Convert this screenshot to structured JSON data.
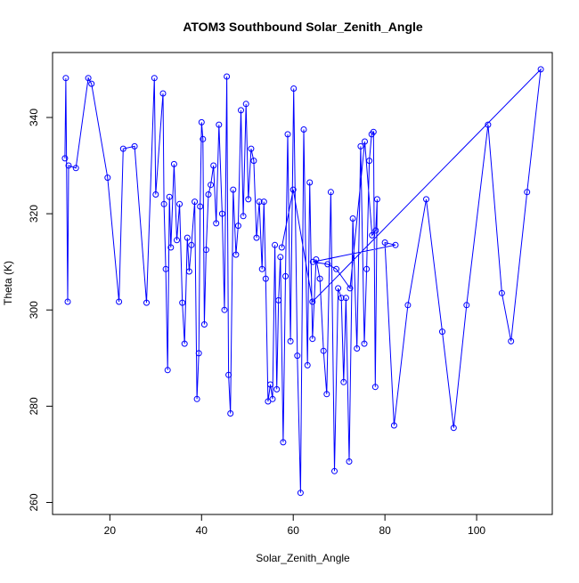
{
  "chart_data": {
    "type": "line",
    "title": "ATOM3 Southbound Solar_Zenith_Angle",
    "xlabel": "Solar_Zenith_Angle",
    "ylabel": "Theta (K)",
    "xlim": [
      7.5,
      116.5
    ],
    "ylim": [
      257.5,
      353.5
    ],
    "x_ticks": [
      20,
      40,
      60,
      80,
      100
    ],
    "y_ticks": [
      260,
      280,
      300,
      320,
      340
    ],
    "grid": false,
    "legend": "none",
    "series_color": "#0000ff",
    "marker": "open-circle",
    "series": [
      {
        "x": [
          10.2,
          10.4,
          10.8,
          11.0,
          12.6,
          15.3,
          16.0,
          19.5,
          22.0,
          22.9,
          25.4,
          28.0,
          29.7,
          30.0,
          31.6,
          31.8,
          32.2,
          32.6,
          33.0,
          33.3,
          34.0,
          34.6,
          35.2,
          35.8,
          36.3,
          36.9,
          37.3,
          37.8,
          38.5,
          39.0,
          39.4,
          39.7,
          40.0,
          40.3,
          40.6,
          41.0,
          41.5,
          42.0,
          42.6,
          43.2,
          43.8,
          44.5,
          45.0,
          45.5,
          45.9,
          46.3,
          46.9,
          47.5,
          48.0,
          48.6,
          49.1,
          49.7,
          50.2,
          50.8,
          51.4,
          52.0,
          52.6,
          53.2,
          53.6,
          54.0,
          54.5,
          55.0,
          55.5,
          56.0,
          56.4,
          56.8,
          57.2,
          57.8,
          58.3,
          58.8,
          59.4,
          60.1,
          60.9,
          61.6,
          62.3,
          63.1,
          63.6,
          64.2,
          65.0,
          65.8,
          66.6,
          67.3,
          68.2,
          69.0,
          69.8,
          70.5,
          71.0,
          71.5,
          72.2,
          73.0,
          73.9,
          74.7,
          75.5,
          76.0,
          76.6,
          77.1,
          77.5,
          77.9,
          78.3,
          78.0,
          77.2,
          75.6,
          72.4,
          69.4,
          67.5,
          64.3,
          82.3,
          80.0,
          82.0,
          85.0,
          89.0,
          92.5,
          95.0,
          97.8,
          102.5,
          105.5,
          107.5,
          111.0,
          114.0,
          64.2,
          60.0,
          57.5
        ],
        "y": [
          331.5,
          348.2,
          301.7,
          330.0,
          329.5,
          348.2,
          347.0,
          327.5,
          301.7,
          333.5,
          334.0,
          301.5,
          348.2,
          324.0,
          345.0,
          322.0,
          308.5,
          287.5,
          323.5,
          313.0,
          330.3,
          314.5,
          322.0,
          301.5,
          293.0,
          315.0,
          308.0,
          313.5,
          322.5,
          281.5,
          291.0,
          321.5,
          339.0,
          335.5,
          297.0,
          312.5,
          324.0,
          326.0,
          330.0,
          318.0,
          338.5,
          320.0,
          300.0,
          348.5,
          286.5,
          278.5,
          325.0,
          311.5,
          317.5,
          341.5,
          319.5,
          342.8,
          323.0,
          333.5,
          331.0,
          315.0,
          322.5,
          308.5,
          322.5,
          306.5,
          281.0,
          284.5,
          281.5,
          313.5,
          283.5,
          302.0,
          311.0,
          272.5,
          307.0,
          336.5,
          293.5,
          346.0,
          290.5,
          262.0,
          337.5,
          288.5,
          326.5,
          294.0,
          310.5,
          306.5,
          291.5,
          282.5,
          324.5,
          266.5,
          304.5,
          302.5,
          285.0,
          302.5,
          268.5,
          319.0,
          292.0,
          334.0,
          293.0,
          308.5,
          331.0,
          336.5,
          337.0,
          284.0,
          323.0,
          316.5,
          315.5,
          335.0,
          304.5,
          308.5,
          309.5,
          310.0,
          313.5,
          314.0,
          276.0,
          301.0,
          323.0,
          295.5,
          275.5,
          301.0,
          338.5,
          303.5,
          293.5,
          324.5,
          350.0,
          301.7,
          325.0,
          313.0
        ]
      }
    ]
  }
}
